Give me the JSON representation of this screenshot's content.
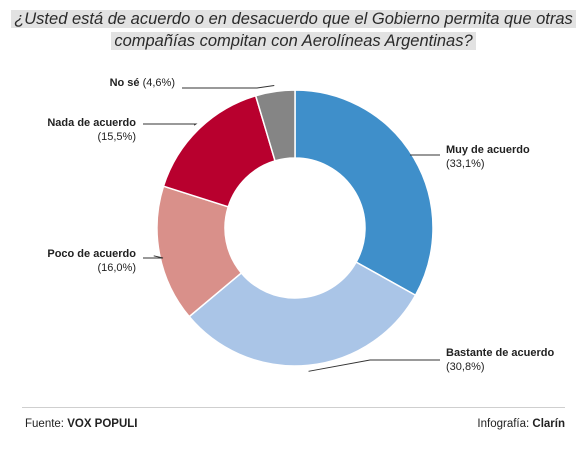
{
  "chart_data": {
    "type": "pie",
    "title": "¿Usted está de acuerdo o en desacuerdo que el Gobierno permita que otras compañías compitan con Aerolíneas Argentinas?",
    "slices": [
      {
        "label": "Muy de acuerdo",
        "value": 33.1,
        "value_label": "(33,1%)",
        "color": "#3f8fca"
      },
      {
        "label": "Bastante de acuerdo",
        "value": 30.8,
        "value_label": "(30,8%)",
        "color": "#aac5e7"
      },
      {
        "label": "Poco de acuerdo",
        "value": 16.0,
        "value_label": "(16,0%)",
        "color": "#d9908a"
      },
      {
        "label": "Nada de acuerdo",
        "value": 15.5,
        "value_label": "(15,5%)",
        "color": "#b8002e"
      },
      {
        "label": "No sé",
        "value": 4.6,
        "value_label": "(4,6%)",
        "color": "#858585"
      }
    ],
    "style": "donut"
  },
  "footer": {
    "source_prefix": "Fuente: ",
    "source_name": "VOX POPULI",
    "credit_prefix": "Infografía: ",
    "credit_name": "Clarín"
  }
}
